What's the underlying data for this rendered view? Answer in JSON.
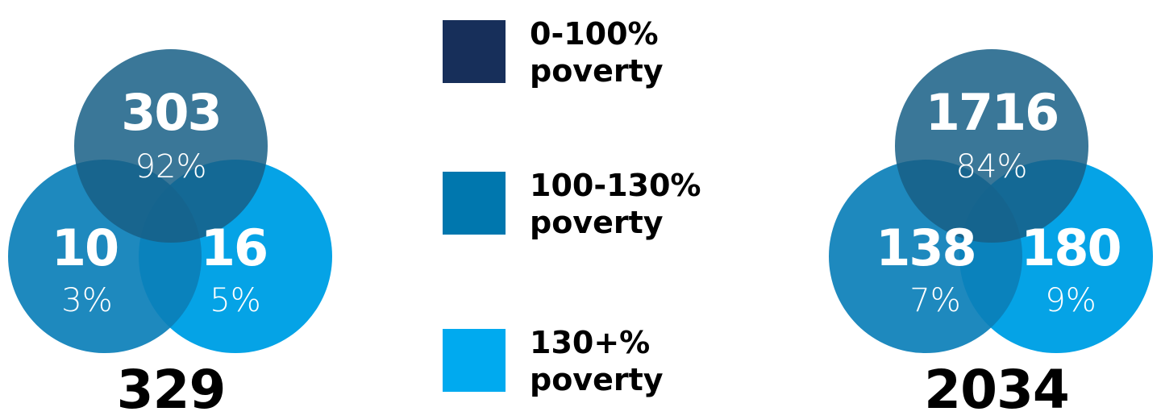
{
  "groups": [
    {
      "top": {
        "count": 303,
        "percent": "92%"
      },
      "left": {
        "count": 10,
        "percent": "3%"
      },
      "right": {
        "count": 16,
        "percent": "5%"
      },
      "total": 329
    },
    {
      "top": {
        "count": 1716,
        "percent": "84%"
      },
      "left": {
        "count": 138,
        "percent": "7%"
      },
      "right": {
        "count": 180,
        "percent": "9%"
      },
      "total": 2034
    }
  ],
  "legend": [
    {
      "label": "0-100% poverty",
      "color": "#172f5a"
    },
    {
      "label": "100-130% poverty",
      "color": "#0077ae"
    },
    {
      "label": "130+% poverty",
      "color": "#00aaef"
    }
  ]
}
